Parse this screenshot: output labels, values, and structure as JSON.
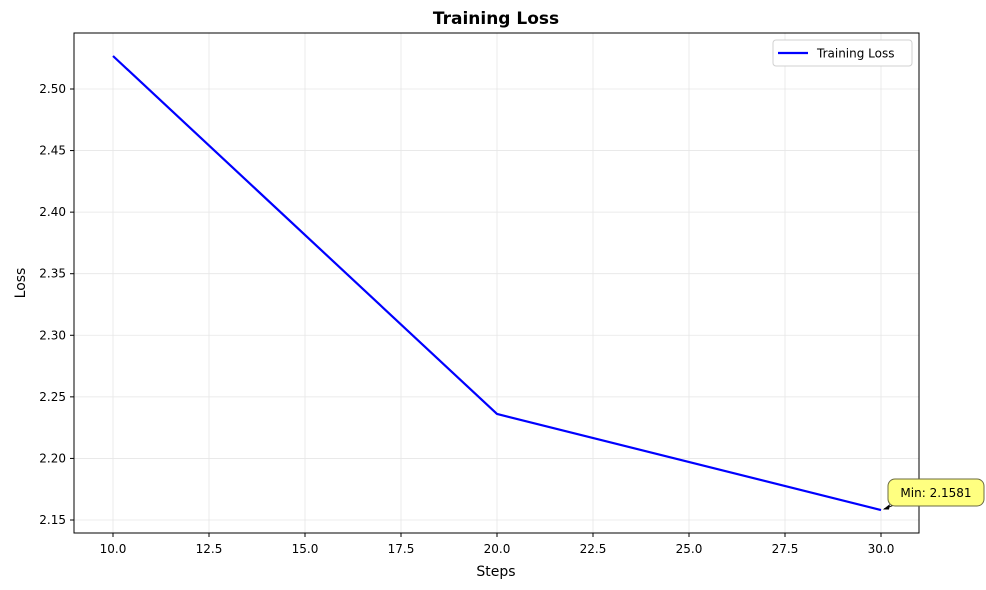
{
  "chart_data": {
    "type": "line",
    "title": "Training Loss",
    "xlabel": "Steps",
    "ylabel": "Loss",
    "x": [
      10,
      20,
      30
    ],
    "series": [
      {
        "name": "Training Loss",
        "color": "#0000ff",
        "values": [
          2.5268,
          2.2361,
          2.1581
        ]
      }
    ],
    "xlim": [
      9,
      31
    ],
    "ylim": [
      2.14,
      2.545
    ],
    "xticks": [
      "10.0",
      "12.5",
      "15.0",
      "17.5",
      "20.0",
      "22.5",
      "25.0",
      "27.5",
      "30.0"
    ],
    "yticks": [
      "2.15",
      "2.20",
      "2.25",
      "2.30",
      "2.35",
      "2.40",
      "2.45",
      "2.50"
    ],
    "grid": true,
    "legend_position": "upper right",
    "annotation": {
      "text": "Min: 2.1581",
      "x": 30,
      "y": 2.1581,
      "box_color": "#ffff80"
    }
  }
}
